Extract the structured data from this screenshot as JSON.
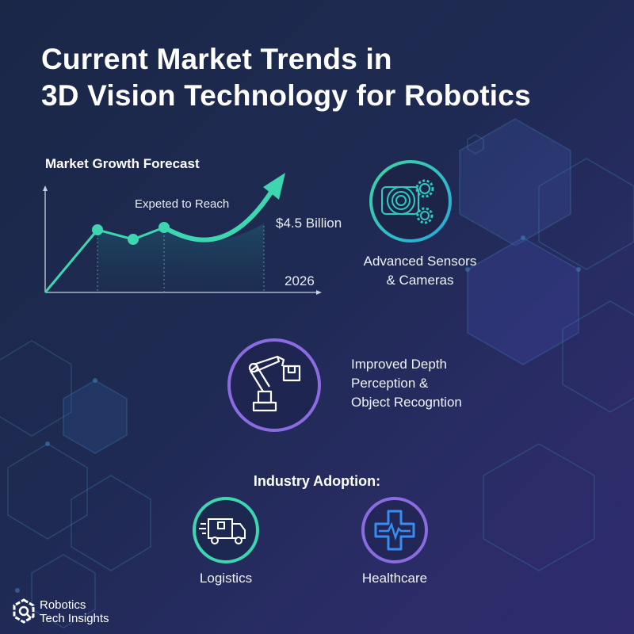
{
  "title": {
    "line1": "Current Market Trends in",
    "line2": "3D Vision Technology for Robotics"
  },
  "chart": {
    "title": "Market Growth Forecast",
    "annotation": "Expeted to Reach",
    "value_label": "$4.5 Billion",
    "year_label": "2026",
    "colors": {
      "line": "#3dd6b0",
      "fill": "#1f4a63"
    }
  },
  "features": [
    {
      "icon": "camera-gears-icon",
      "label_line1": "Advanced Sensors",
      "label_line2": "& Cameras",
      "color": "#2fc9c0"
    },
    {
      "icon": "robot-arm-icon",
      "label_line1": "Improved Depth",
      "label_line2": "Perception &",
      "label_line3": "Object Recogntion",
      "color": "#8a6be0"
    }
  ],
  "adoption": {
    "heading": "Industry Adoption:",
    "items": [
      {
        "icon": "delivery-truck-icon",
        "label": "Logistics",
        "color": "#3dd6b0"
      },
      {
        "icon": "medical-cross-heartbeat-icon",
        "label": "Healthcare",
        "color": "#8a6be0"
      }
    ]
  },
  "brand": {
    "line1": "Robotics",
    "line2": "Tech Insights"
  }
}
